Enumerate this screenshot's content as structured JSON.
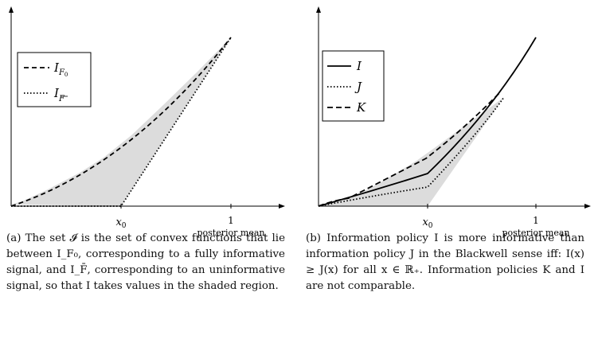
{
  "panel_a": {
    "legend": [
      {
        "label": "I",
        "subscript": "F",
        "subsub": "0",
        "overline": false,
        "style": "dashed"
      },
      {
        "label": "I",
        "subscript": "F",
        "subsub": "",
        "overline": true,
        "style": "dotted"
      }
    ],
    "x_ticks": [
      {
        "main": "x",
        "sub": "0"
      },
      {
        "main": "1",
        "sub": ""
      }
    ],
    "xlabel": "posterior mean",
    "caption": "(a) The set 𝓘 is the set of convex functions that lie between I_F₀, corresponding to a fully informative signal, and I_F̄, corresponding to an uninformative signal, so that I takes values in the shaded region."
  },
  "panel_b": {
    "legend": [
      {
        "label": "I",
        "style": "solid"
      },
      {
        "label": "J",
        "style": "dotted"
      },
      {
        "label": "K",
        "style": "dashed"
      }
    ],
    "x_ticks": [
      {
        "main": "x",
        "sub": "0"
      },
      {
        "main": "1",
        "sub": ""
      }
    ],
    "xlabel": "posterior mean",
    "caption": "(b) Information policy I is more informative than information policy J in the Blackwell sense iff: I(x) ≥ J(x) for all x ∈ ℝ₊. Information policies K and I are not comparable."
  },
  "colors": {
    "shade": "#dcdcdc",
    "line": "#000000"
  }
}
